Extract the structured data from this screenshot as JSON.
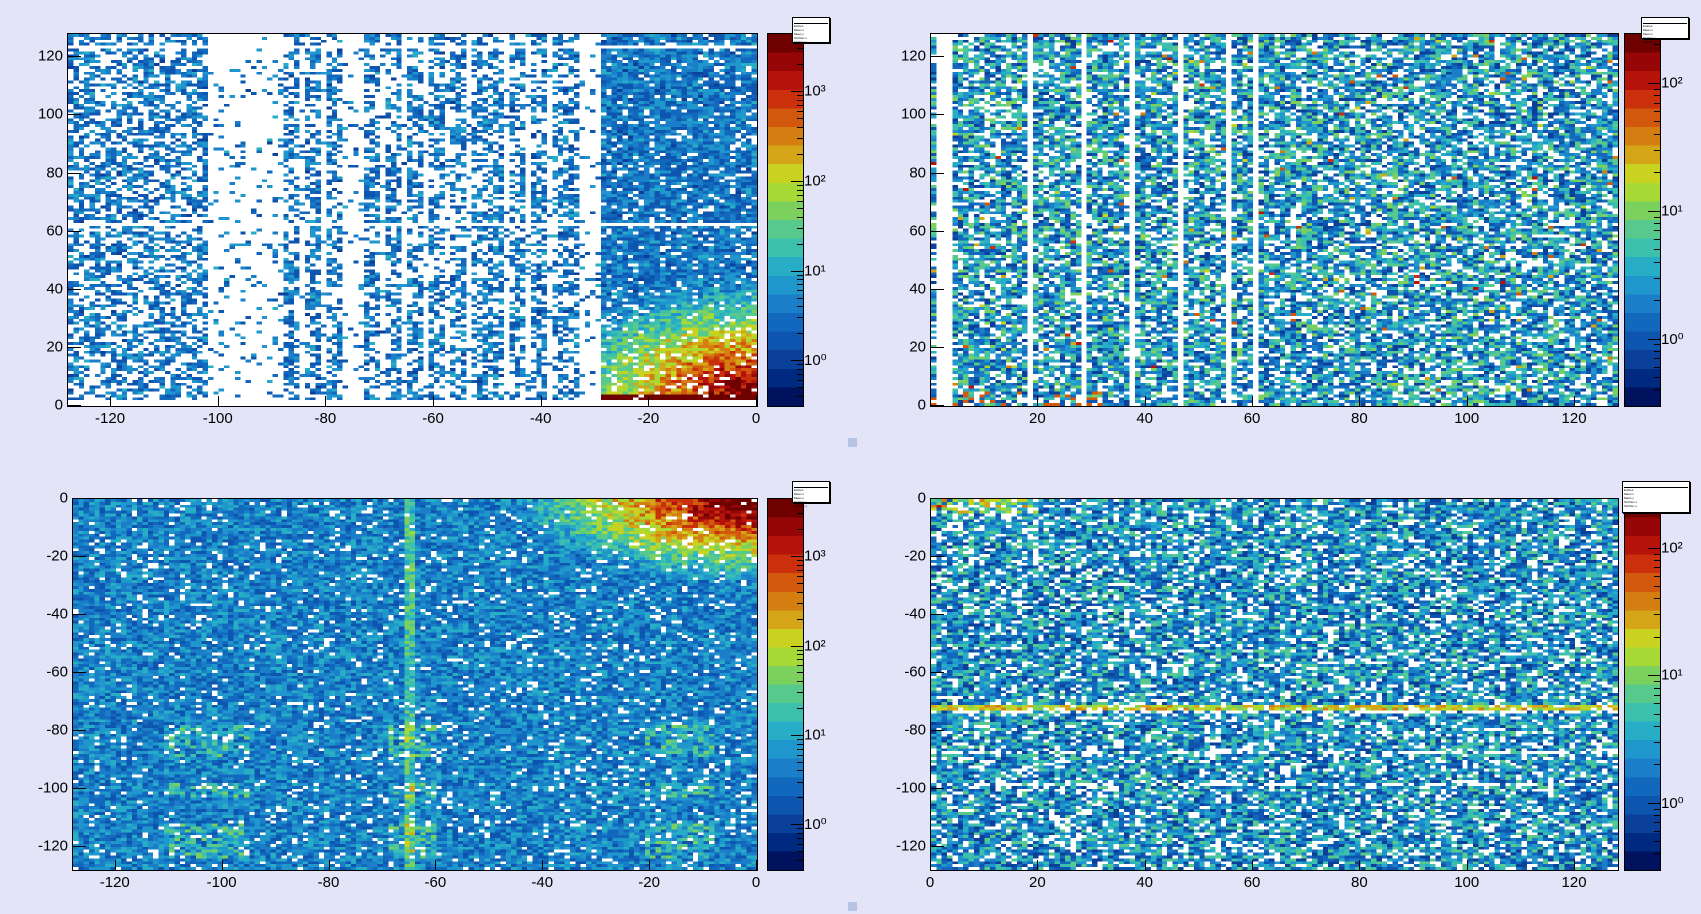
{
  "palette": [
    "#00125e",
    "#002a80",
    "#0a3f9a",
    "#0d55ae",
    "#1268bd",
    "#1a7fc8",
    "#1f97cc",
    "#27aec6",
    "#3dbfae",
    "#58c98c",
    "#7bd05e",
    "#a6d935",
    "#c9d220",
    "#d4a517",
    "#d47d10",
    "#d1580c",
    "#c9300b",
    "#b5120a",
    "#960606",
    "#6e0000"
  ],
  "chart_data": [
    {
      "type": "heatmap",
      "xlim": [
        -128,
        0
      ],
      "ylim": [
        0,
        128
      ],
      "zscale": "log",
      "zlim_log10": [
        -0.5,
        3.65
      ],
      "xticks": [
        "-120",
        "-100",
        "-80",
        "-60",
        "-40",
        "-20",
        "0"
      ],
      "xtick_values": [
        -120,
        -100,
        -80,
        -60,
        -40,
        -20,
        0
      ],
      "yticks": [
        "0",
        "20",
        "40",
        "60",
        "80",
        "100",
        "120"
      ],
      "ytick_values": [
        0,
        20,
        40,
        60,
        80,
        100,
        120
      ],
      "zticks": [
        "10⁰",
        "10¹",
        "10²",
        "10³"
      ],
      "ztick_values": [
        0,
        1,
        2,
        3
      ],
      "stats": [
        "Entries",
        "Mean x",
        "Mean y",
        "Std Dev x",
        "Std Dev y"
      ],
      "pattern": "hot-corner-bottom-right"
    },
    {
      "type": "heatmap",
      "xlim": [
        0,
        128
      ],
      "ylim": [
        0,
        128
      ],
      "zscale": "log",
      "zlim_log10": [
        -0.52,
        2.39
      ],
      "xticks": [
        "20",
        "40",
        "60",
        "80",
        "100",
        "120"
      ],
      "xtick_values": [
        20,
        40,
        60,
        80,
        100,
        120
      ],
      "yticks": [
        "0",
        "20",
        "40",
        "60",
        "80",
        "100",
        "120"
      ],
      "ytick_values": [
        0,
        20,
        40,
        60,
        80,
        100,
        120
      ],
      "zticks": [
        "10⁰",
        "10¹",
        "10²"
      ],
      "ztick_values": [
        0,
        1,
        2
      ],
      "stats": [
        "Entries",
        "Mean x",
        "Mean y",
        "Std Dev x",
        "Std Dev y"
      ],
      "pattern": "uniform"
    },
    {
      "type": "heatmap",
      "xlim": [
        -128,
        0
      ],
      "ylim": [
        -128,
        0
      ],
      "zscale": "log",
      "zlim_log10": [
        -0.5,
        3.65
      ],
      "xticks": [
        "-120",
        "-100",
        "-80",
        "-60",
        "-40",
        "-20",
        "0"
      ],
      "xtick_values": [
        -120,
        -100,
        -80,
        -60,
        -40,
        -20,
        0
      ],
      "yticks": [
        "0",
        "-20",
        "-40",
        "-60",
        "-80",
        "-100",
        "-120"
      ],
      "ytick_values": [
        0,
        -20,
        -40,
        -60,
        -80,
        -100,
        -120
      ],
      "zticks": [
        "10⁰",
        "10¹",
        "10²",
        "10³"
      ],
      "ztick_values": [
        0,
        1,
        2,
        3
      ],
      "stats": [
        "Entries",
        "Mean x",
        "Mean y",
        "Std Dev x",
        "Std Dev y"
      ],
      "pattern": "hot-corner-top-right"
    },
    {
      "type": "heatmap",
      "xlim": [
        0,
        128
      ],
      "ylim": [
        -128,
        0
      ],
      "zscale": "log",
      "zlim_log10": [
        -0.52,
        2.39
      ],
      "xticks": [
        "0",
        "20",
        "40",
        "60",
        "80",
        "100",
        "120"
      ],
      "xtick_values": [
        0,
        20,
        40,
        60,
        80,
        100,
        120
      ],
      "yticks": [
        "0",
        "-20",
        "-40",
        "-60",
        "-80",
        "-100",
        "-120"
      ],
      "ytick_values": [
        0,
        -20,
        -40,
        -60,
        -80,
        -100,
        -120
      ],
      "zticks": [
        "10⁰",
        "10¹",
        "10²"
      ],
      "ztick_values": [
        0,
        1,
        2
      ],
      "stats": [
        "Entries",
        "Mean x",
        "Mean y",
        "Std Dev x",
        "Std Dev y"
      ],
      "pattern": "band-at-y-minus-72"
    }
  ]
}
